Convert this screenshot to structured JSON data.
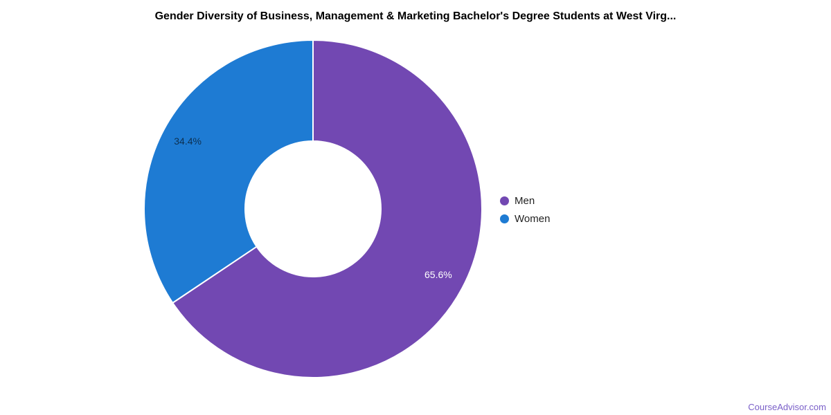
{
  "page": {
    "background": "#ffffff",
    "watermark": {
      "label": "CourseAdvisor.com",
      "color": "#7a5fc8"
    }
  },
  "chart_data": {
    "type": "pie",
    "donut": true,
    "title": "Gender Diversity of Business, Management & Marketing Bachelor's Degree Students at West Virg...",
    "title_color": "#000000",
    "categories": [
      "Men",
      "Women"
    ],
    "values": [
      65.6,
      34.4
    ],
    "slices": [
      {
        "label": "Men",
        "value": 65.6,
        "display": "65.6%",
        "color": "#7248b2",
        "label_color": "#ffffff"
      },
      {
        "label": "Women",
        "value": 34.4,
        "display": "34.4%",
        "color": "#1e7bd3",
        "label_color": "#0d3050"
      }
    ],
    "start_angle_deg": 0,
    "direction": "clockwise",
    "inner_radius_ratio": 0.4,
    "slice_border_color": "#ffffff",
    "legend_position": "right",
    "legend_text_color": "#222222",
    "grid": false
  }
}
